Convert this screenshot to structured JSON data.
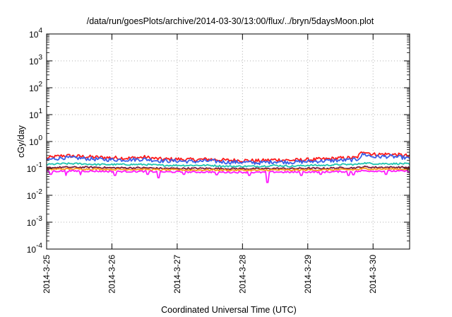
{
  "chart_data": {
    "type": "line",
    "title": "/data/run/goesPlots/archive/2014-03-30/13:00/flux/../bryn/5daysMoon.plot",
    "xlabel": "Coordinated Universal Time (UTC)",
    "ylabel": "cGy/day",
    "yscale": "log",
    "ylim": [
      0.0001,
      10000
    ],
    "xlim": [
      0,
      5.56
    ],
    "grid": true,
    "ytick_exponents": [
      "-4",
      "-3",
      "-2",
      "-1",
      "0",
      "1",
      "2",
      "3",
      "4"
    ],
    "xticks": [
      {
        "value": 0,
        "label": "2014-3-25"
      },
      {
        "value": 1,
        "label": "2014-3-26"
      },
      {
        "value": 2,
        "label": "2014-3-27"
      },
      {
        "value": 3,
        "label": "2014-3-28"
      },
      {
        "value": 4,
        "label": "2014-3-29"
      },
      {
        "value": 5,
        "label": "2014-3-30"
      }
    ],
    "x_units": "days since 2014-3-25 00:00 UTC",
    "series": [
      {
        "name": "red",
        "color": "#ff1a1a",
        "x": [
          0,
          0.25,
          0.5,
          0.75,
          1.0,
          1.25,
          1.5,
          1.75,
          2.0,
          2.25,
          2.5,
          2.75,
          3.0,
          3.25,
          3.5,
          3.75,
          4.0,
          4.25,
          4.5,
          4.75,
          4.85,
          5.0,
          5.25,
          5.5,
          5.56
        ],
        "y": [
          0.24,
          0.3,
          0.28,
          0.26,
          0.25,
          0.24,
          0.26,
          0.22,
          0.22,
          0.21,
          0.22,
          0.2,
          0.2,
          0.19,
          0.21,
          0.2,
          0.21,
          0.22,
          0.24,
          0.25,
          0.45,
          0.33,
          0.34,
          0.3,
          0.27
        ]
      },
      {
        "name": "blue",
        "color": "#3a5fe8",
        "x": [
          0,
          0.25,
          0.5,
          0.75,
          1.0,
          1.25,
          1.5,
          1.75,
          2.0,
          2.25,
          2.5,
          2.75,
          3.0,
          3.25,
          3.5,
          3.75,
          4.0,
          4.25,
          4.5,
          4.75,
          4.85,
          5.0,
          5.25,
          5.5,
          5.56
        ],
        "y": [
          0.21,
          0.25,
          0.24,
          0.22,
          0.21,
          0.21,
          0.22,
          0.19,
          0.19,
          0.18,
          0.19,
          0.17,
          0.17,
          0.16,
          0.18,
          0.17,
          0.18,
          0.19,
          0.2,
          0.21,
          0.34,
          0.27,
          0.28,
          0.25,
          0.22
        ]
      },
      {
        "name": "cyan",
        "color": "#20c4b0",
        "x": [
          0,
          0.25,
          0.5,
          0.75,
          1.0,
          1.25,
          1.5,
          1.75,
          2.0,
          2.25,
          2.5,
          2.75,
          3.0,
          3.25,
          3.5,
          3.75,
          4.0,
          4.25,
          4.5,
          4.75,
          4.85,
          5.0,
          5.25,
          5.5,
          5.56
        ],
        "y": [
          0.14,
          0.15,
          0.15,
          0.14,
          0.14,
          0.14,
          0.14,
          0.13,
          0.13,
          0.13,
          0.13,
          0.12,
          0.12,
          0.12,
          0.13,
          0.12,
          0.13,
          0.13,
          0.14,
          0.14,
          0.16,
          0.15,
          0.15,
          0.15,
          0.14
        ]
      },
      {
        "name": "maroon",
        "color": "#7a1a3a",
        "x": [
          0,
          0.25,
          0.5,
          0.75,
          1.0,
          1.25,
          1.5,
          1.75,
          2.0,
          2.25,
          2.5,
          2.75,
          3.0,
          3.25,
          3.5,
          3.75,
          4.0,
          4.25,
          4.5,
          4.75,
          4.85,
          5.0,
          5.25,
          5.5,
          5.56
        ],
        "y": [
          0.105,
          0.11,
          0.11,
          0.11,
          0.105,
          0.105,
          0.105,
          0.1,
          0.1,
          0.1,
          0.1,
          0.098,
          0.098,
          0.096,
          0.1,
          0.098,
          0.1,
          0.1,
          0.105,
          0.105,
          0.115,
          0.11,
          0.11,
          0.11,
          0.105
        ]
      },
      {
        "name": "orange",
        "color": "#ff9a1a",
        "x": [
          0,
          0.25,
          0.5,
          0.75,
          1.0,
          1.25,
          1.5,
          1.75,
          2.0,
          2.25,
          2.5,
          2.75,
          3.0,
          3.25,
          3.5,
          3.75,
          4.0,
          4.25,
          4.5,
          4.75,
          4.85,
          5.0,
          5.25,
          5.5,
          5.56
        ],
        "y": [
          0.092,
          0.095,
          0.095,
          0.094,
          0.092,
          0.092,
          0.092,
          0.088,
          0.088,
          0.087,
          0.088,
          0.086,
          0.086,
          0.085,
          0.088,
          0.086,
          0.088,
          0.088,
          0.09,
          0.09,
          0.098,
          0.095,
          0.095,
          0.094,
          0.092
        ]
      },
      {
        "name": "magenta",
        "color": "#ff1aff",
        "x": [
          0,
          0.25,
          0.5,
          0.75,
          1.0,
          1.25,
          1.5,
          1.75,
          2.0,
          2.25,
          2.5,
          2.75,
          3.0,
          3.25,
          3.5,
          3.75,
          4.0,
          4.25,
          4.5,
          4.75,
          4.85,
          5.0,
          5.25,
          5.5,
          5.56
        ],
        "y": [
          0.078,
          0.08,
          0.08,
          0.079,
          0.077,
          0.077,
          0.077,
          0.074,
          0.074,
          0.073,
          0.074,
          0.072,
          0.072,
          0.071,
          0.074,
          0.072,
          0.074,
          0.074,
          0.076,
          0.076,
          0.082,
          0.08,
          0.08,
          0.079,
          0.077
        ],
        "dips": [
          {
            "x": 0.06,
            "y": 0.06
          },
          {
            "x": 0.3,
            "y": 0.055
          },
          {
            "x": 0.52,
            "y": 0.058
          },
          {
            "x": 1.05,
            "y": 0.055
          },
          {
            "x": 1.55,
            "y": 0.06
          },
          {
            "x": 1.71,
            "y": 0.045
          },
          {
            "x": 2.1,
            "y": 0.06
          },
          {
            "x": 2.6,
            "y": 0.058
          },
          {
            "x": 3.1,
            "y": 0.055
          },
          {
            "x": 3.38,
            "y": 0.03
          },
          {
            "x": 3.9,
            "y": 0.055
          },
          {
            "x": 4.2,
            "y": 0.06
          },
          {
            "x": 4.62,
            "y": 0.055
          },
          {
            "x": 4.7,
            "y": 0.058
          },
          {
            "x": 5.2,
            "y": 0.06
          }
        ]
      }
    ],
    "noise_hint": "series fluctuate rapidly around the listed values"
  }
}
